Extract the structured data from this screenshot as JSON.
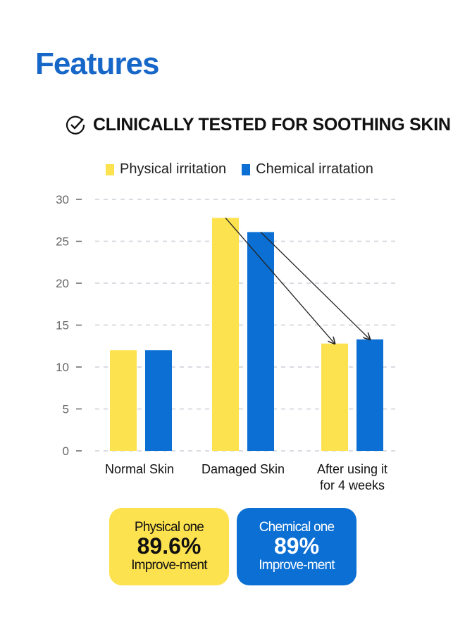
{
  "title": "Features",
  "headline": {
    "icon": "check-circle-icon",
    "text": "CLINICALLY TESTED FOR SOOTHING SKIN"
  },
  "colors": {
    "physical": "#fde24f",
    "chemical": "#0b6fd3",
    "title": "#1767c9"
  },
  "chart_data": {
    "type": "bar",
    "categories": [
      "Normal Skin",
      "Damaged Skin",
      "After using it for 4 weeks"
    ],
    "category_lines": [
      [
        "Normal Skin"
      ],
      [
        "Damaged Skin"
      ],
      [
        "After using it",
        "for 4 weeks"
      ]
    ],
    "series": [
      {
        "name": "Physical irritation",
        "values": [
          12,
          27.8,
          12.8
        ]
      },
      {
        "name": "Chemical irratation",
        "values": [
          12,
          26.1,
          13.3
        ]
      }
    ],
    "ylim": [
      0,
      30
    ],
    "yticks": [
      "0",
      "5",
      "10",
      "15",
      "20",
      "25",
      "30"
    ],
    "grid": true,
    "legend": "top",
    "annotations": "arrows from Damaged Skin bars to After bars"
  },
  "boxes": [
    {
      "label": "Physical one",
      "value": "89.6%",
      "sub": "Improve-ment"
    },
    {
      "label": "Chemical one",
      "value": "89%",
      "sub": "Improve-ment"
    }
  ]
}
